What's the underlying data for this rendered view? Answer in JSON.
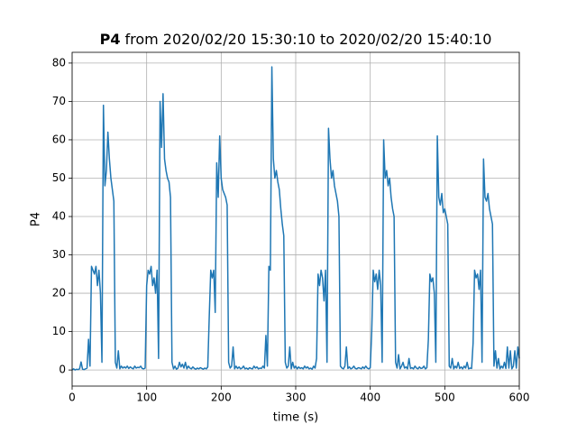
{
  "chart_data": {
    "type": "line",
    "title": {
      "bold": "P4",
      "rest": "from 2020/02/20 15:30:10 to 2020/02/20 15:40:10"
    },
    "xlabel": "time (s)",
    "ylabel": "P4",
    "xlim": [
      0,
      600
    ],
    "ylim": [
      -4.2,
      82.8
    ],
    "xticks": [
      0,
      100,
      200,
      300,
      400,
      500,
      600
    ],
    "yticks": [
      0,
      10,
      20,
      30,
      40,
      50,
      60,
      70,
      80
    ],
    "grid": true,
    "x": [
      0,
      2,
      4,
      6,
      8,
      10,
      12,
      14,
      16,
      18,
      20,
      22,
      24,
      26,
      28,
      30,
      32,
      34,
      36,
      38,
      40,
      42,
      44,
      46,
      48,
      50,
      52,
      54,
      56,
      58,
      60,
      62,
      64,
      66,
      68,
      70,
      72,
      74,
      76,
      78,
      80,
      82,
      84,
      86,
      88,
      90,
      92,
      94,
      96,
      98,
      100,
      102,
      104,
      106,
      108,
      110,
      112,
      114,
      116,
      118,
      120,
      122,
      124,
      126,
      128,
      130,
      132,
      134,
      136,
      138,
      140,
      142,
      144,
      146,
      148,
      150,
      152,
      154,
      156,
      158,
      160,
      162,
      164,
      166,
      168,
      170,
      172,
      174,
      176,
      178,
      180,
      182,
      184,
      186,
      188,
      190,
      192,
      194,
      196,
      198,
      200,
      202,
      204,
      206,
      208,
      210,
      212,
      214,
      216,
      218,
      220,
      222,
      224,
      226,
      228,
      230,
      232,
      234,
      236,
      238,
      240,
      242,
      244,
      246,
      248,
      250,
      252,
      254,
      256,
      258,
      260,
      262,
      264,
      266,
      268,
      270,
      272,
      274,
      276,
      278,
      280,
      282,
      284,
      286,
      288,
      290,
      292,
      294,
      296,
      298,
      300,
      302,
      304,
      306,
      308,
      310,
      312,
      314,
      316,
      318,
      320,
      322,
      324,
      326,
      328,
      330,
      332,
      334,
      336,
      338,
      340,
      342,
      344,
      346,
      348,
      350,
      352,
      354,
      356,
      358,
      360,
      362,
      364,
      366,
      368,
      370,
      372,
      374,
      376,
      378,
      380,
      382,
      384,
      386,
      388,
      390,
      392,
      394,
      396,
      398,
      400,
      402,
      404,
      406,
      408,
      410,
      412,
      414,
      416,
      418,
      420,
      422,
      424,
      426,
      428,
      430,
      432,
      434,
      436,
      438,
      440,
      442,
      444,
      446,
      448,
      450,
      452,
      454,
      456,
      458,
      460,
      462,
      464,
      466,
      468,
      470,
      472,
      474,
      476,
      478,
      480,
      482,
      484,
      486,
      488,
      490,
      492,
      494,
      496,
      498,
      500,
      502,
      504,
      506,
      508,
      510,
      512,
      514,
      516,
      518,
      520,
      522,
      524,
      526,
      528,
      530,
      532,
      534,
      536,
      538,
      540,
      542,
      544,
      546,
      548,
      550,
      552,
      554,
      556,
      558,
      560,
      562,
      564,
      566,
      568,
      570,
      572,
      574,
      576,
      578,
      580,
      582,
      584,
      586,
      588,
      590,
      592,
      594,
      596,
      598,
      600
    ],
    "series": [
      {
        "name": "P4",
        "color": "#1f77b4",
        "values": [
          0,
          0.3,
          0,
          0.2,
          0.1,
          0.3,
          2.1,
          0.2,
          0.1,
          0.3,
          0.5,
          8,
          1,
          27,
          26,
          25,
          27,
          22,
          26,
          20,
          2,
          69,
          48,
          52,
          62,
          55,
          50,
          47,
          44,
          2,
          0.5,
          5,
          0.3,
          1,
          0.5,
          0.8,
          0.5,
          1,
          0.4,
          0.8,
          0.5,
          0.3,
          1,
          0.5,
          0.7,
          0.6,
          1,
          0.4,
          0.3,
          0.5,
          22,
          26,
          25,
          27,
          22,
          24,
          20,
          26,
          3,
          70,
          58,
          72,
          55,
          52,
          50,
          49,
          45,
          2,
          0.3,
          1,
          0.2,
          0.5,
          2,
          0.8,
          1.5,
          0.5,
          2,
          0.3,
          1,
          0.5,
          0.3,
          0.8,
          0.4,
          0.2,
          0.5,
          0.3,
          0.6,
          0.4,
          0.2,
          0.5,
          0.3,
          0.8,
          14,
          26,
          24,
          26,
          15,
          54,
          45,
          61,
          50,
          47,
          46,
          45,
          43,
          2,
          0.5,
          1,
          6,
          0.3,
          1,
          0.4,
          0.8,
          0.3,
          0.5,
          1,
          0.3,
          0.5,
          0.2,
          0.6,
          0.4,
          0.3,
          1,
          0.5,
          0.8,
          0.3,
          0.5,
          0.4,
          1,
          0.5,
          9,
          1,
          27,
          26,
          79,
          55,
          50,
          52,
          49,
          47,
          42,
          38,
          35,
          2,
          0.5,
          1,
          6,
          0.3,
          2,
          0.5,
          1,
          0.3,
          0.8,
          0.4,
          0.6,
          0.3,
          1,
          0.5,
          0.8,
          0.3,
          0.5,
          0.2,
          1,
          0.5,
          3,
          25,
          22,
          26,
          24,
          18,
          26,
          2,
          63,
          55,
          50,
          52,
          48,
          46,
          44,
          40,
          1,
          0.5,
          0.3,
          1,
          6,
          0.4,
          0.8,
          0.3,
          0.5,
          1,
          0.4,
          0.3,
          0.6,
          0.5,
          0.3,
          0.8,
          0.4,
          1,
          0.5,
          0.3,
          0.6,
          10,
          26,
          23,
          25,
          21,
          26,
          22,
          2,
          60,
          50,
          52,
          48,
          50,
          45,
          42,
          40,
          2,
          0.5,
          4,
          0.3,
          1,
          2,
          0.5,
          0.8,
          0.3,
          3,
          0.4,
          0.6,
          0.3,
          1,
          0.5,
          0.3,
          0.8,
          0.4,
          0.5,
          1,
          0.3,
          0.6,
          8,
          25,
          23,
          24,
          20,
          2,
          61,
          45,
          43,
          46,
          41,
          42,
          40,
          38,
          1,
          0.5,
          3,
          0.3,
          1,
          0.5,
          2,
          0.4,
          0.8,
          0.3,
          1,
          0.5,
          2,
          0.3,
          0.5,
          0.4,
          7,
          26,
          24,
          25,
          21,
          26,
          2,
          55,
          45,
          44,
          46,
          42,
          40,
          38,
          1,
          5,
          0.5,
          3,
          0.3,
          1,
          0.5,
          2,
          0.4,
          6,
          0.5,
          5,
          0.3,
          1,
          5,
          0.5,
          6,
          3
        ]
      }
    ]
  }
}
